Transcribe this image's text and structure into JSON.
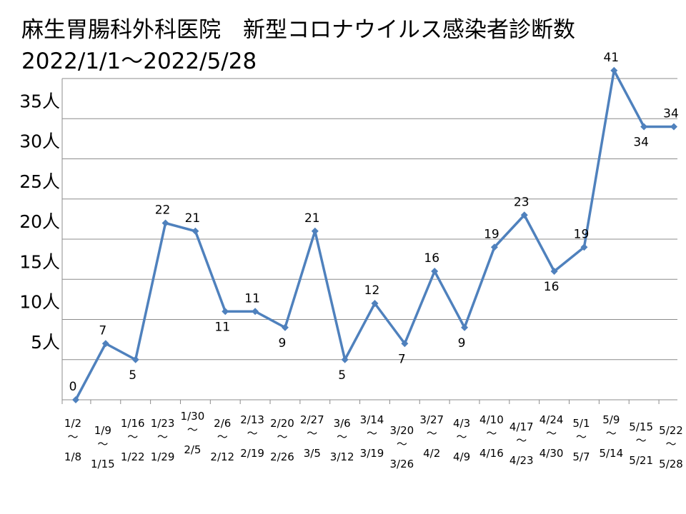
{
  "header": {
    "title": "麻生胃腸科外科医院　新型コロナウイルス感染者診断数",
    "subtitle": "2022/1/1〜2022/5/28"
  },
  "chart_data": {
    "type": "line",
    "title": "麻生胃腸科外科医院　新型コロナウイルス感染者診断数",
    "subtitle": "2022/1/1〜2022/5/28",
    "xlabel": "",
    "ylabel": "",
    "ylim": [
      0,
      40
    ],
    "y_ticks": [
      {
        "value": 5,
        "label": "5人"
      },
      {
        "value": 10,
        "label": "10人"
      },
      {
        "value": 15,
        "label": "15人"
      },
      {
        "value": 20,
        "label": "20人"
      },
      {
        "value": 25,
        "label": "25人"
      },
      {
        "value": 30,
        "label": "30人"
      },
      {
        "value": 35,
        "label": "35人"
      }
    ],
    "grid": true,
    "legend": "none",
    "color": "#4f81bd",
    "categories": [
      {
        "start": "1/2",
        "end": "1/8"
      },
      {
        "start": "1/9",
        "end": "1/15"
      },
      {
        "start": "1/16",
        "end": "1/22"
      },
      {
        "start": "1/23",
        "end": "1/29"
      },
      {
        "start": "1/30",
        "end": "2/5"
      },
      {
        "start": "2/6",
        "end": "2/12"
      },
      {
        "start": "2/13",
        "end": "2/19"
      },
      {
        "start": "2/20",
        "end": "2/26"
      },
      {
        "start": "2/27",
        "end": "3/5"
      },
      {
        "start": "3/6",
        "end": "3/12"
      },
      {
        "start": "3/14",
        "end": "3/19"
      },
      {
        "start": "3/20",
        "end": "3/26"
      },
      {
        "start": "3/27",
        "end": "4/2"
      },
      {
        "start": "4/3",
        "end": "4/9"
      },
      {
        "start": "4/10",
        "end": "4/16"
      },
      {
        "start": "4/17",
        "end": "4/23"
      },
      {
        "start": "4/24",
        "end": "4/30"
      },
      {
        "start": "5/1",
        "end": "5/7"
      },
      {
        "start": "5/9",
        "end": "5/14"
      },
      {
        "start": "5/15",
        "end": "5/21"
      },
      {
        "start": "5/22",
        "end": "5/28"
      }
    ],
    "range_separator": "〜",
    "values": [
      0,
      7,
      5,
      22,
      21,
      11,
      11,
      9,
      21,
      5,
      12,
      7,
      16,
      9,
      19,
      23,
      16,
      19,
      41,
      34,
      34
    ],
    "data_labels": [
      "0",
      "7",
      "5",
      "22",
      "21",
      "11",
      "11",
      "9",
      "21",
      "5",
      "12",
      "7",
      "16",
      "9",
      "19",
      "23",
      "16",
      "19",
      "41",
      "34",
      "34"
    ]
  }
}
